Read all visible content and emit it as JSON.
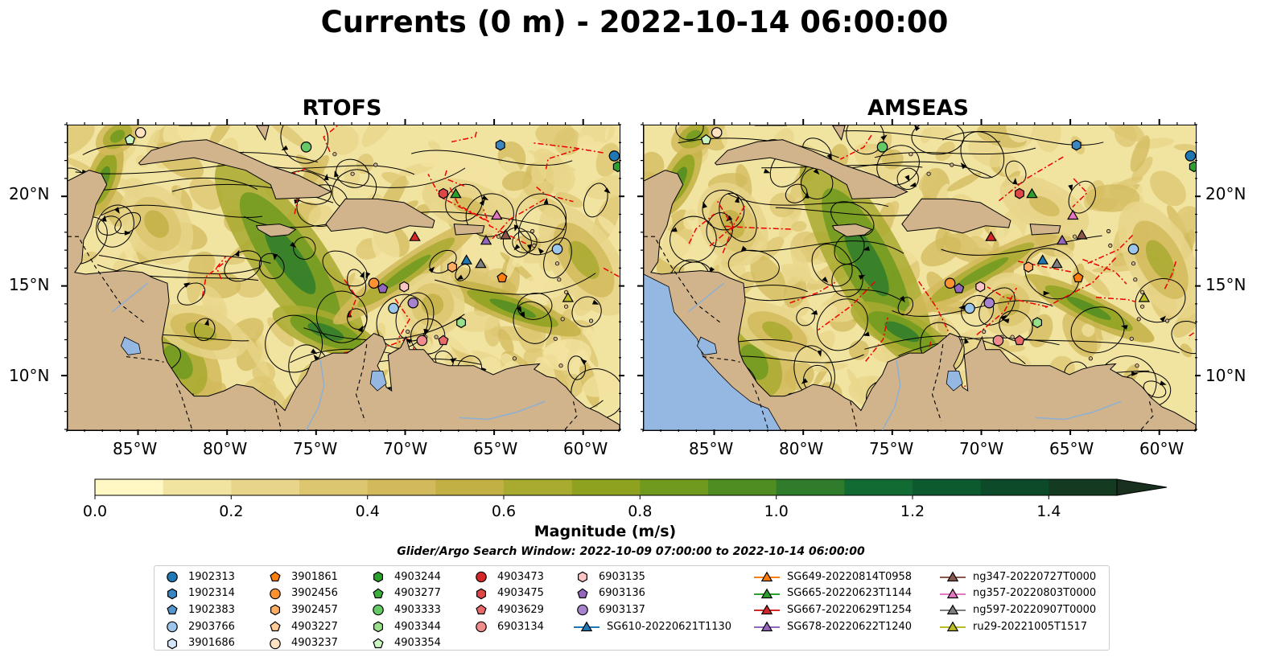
{
  "title": "Currents (0 m) - 2022-10-14 06:00:00",
  "panels": [
    {
      "title": "RTOFS",
      "ocean_left": false
    },
    {
      "title": "AMSEAS",
      "ocean_left": true
    }
  ],
  "lat_labels": [
    "20°N",
    "15°N",
    "10°N"
  ],
  "lon_labels": [
    "85°W",
    "80°W",
    "75°W",
    "70°W",
    "65°W",
    "60°W"
  ],
  "map_extent": {
    "lon_min": -89,
    "lon_max": -58,
    "lat_min": 7,
    "lat_max": 24
  },
  "colorbar": {
    "label": "Magnitude (m/s)",
    "ticks": [
      "0.0",
      "0.2",
      "0.4",
      "0.6",
      "0.8",
      "1.0",
      "1.2",
      "1.4"
    ],
    "min": 0.0,
    "max": 1.5,
    "step": 0.1,
    "extend": "max",
    "colors": [
      "#fff8c4",
      "#f1e3a0",
      "#e8d58a",
      "#dcc670",
      "#d2ba5c",
      "#c3b045",
      "#a9aa30",
      "#8ea220",
      "#6f9a1e",
      "#4f8d22",
      "#2f7c2c",
      "#136b34",
      "#0d5a2f",
      "#0c4a2a",
      "#153a22",
      "#18301d"
    ]
  },
  "search_window": "Glider/Argo Search Window: 2022-10-09 07:00:00 to 2022-10-14 06:00:00",
  "colors": {
    "land": "#d2b48c",
    "ocean": "#95b8e3",
    "lake": "#95b8e3",
    "eez": "#ee0000"
  },
  "legend": {
    "columns": [
      [
        {
          "label": "1902313",
          "marker": "circle",
          "color": "#1f77b4"
        },
        {
          "label": "1902314",
          "marker": "hexagon",
          "color": "#3b85c0"
        },
        {
          "label": "1902383",
          "marker": "pentagon",
          "color": "#5497cf"
        },
        {
          "label": "2903766",
          "marker": "circle",
          "color": "#9dc7ea"
        },
        {
          "label": "3901686",
          "marker": "hexagon",
          "color": "#d2e6f7"
        }
      ],
      [
        {
          "label": "3901861",
          "marker": "pentagon",
          "color": "#ff7f0e"
        },
        {
          "label": "3902456",
          "marker": "circle",
          "color": "#ff9230"
        },
        {
          "label": "3902457",
          "marker": "hexagon",
          "color": "#ffae63"
        },
        {
          "label": "4903227",
          "marker": "pentagon",
          "color": "#ffcb96"
        },
        {
          "label": "4903237",
          "marker": "circle",
          "color": "#ffe2c4"
        }
      ],
      [
        {
          "label": "4903244",
          "marker": "hexagon",
          "color": "#2ca02c"
        },
        {
          "label": "4903277",
          "marker": "pentagon",
          "color": "#3cae3c"
        },
        {
          "label": "4903333",
          "marker": "circle",
          "color": "#65c965"
        },
        {
          "label": "4903344",
          "marker": "hexagon",
          "color": "#98df8a"
        },
        {
          "label": "4903354",
          "marker": "pentagon",
          "color": "#ccf5c4"
        }
      ],
      [
        {
          "label": "4903473",
          "marker": "circle",
          "color": "#d62728"
        },
        {
          "label": "4903475",
          "marker": "hexagon",
          "color": "#e04848"
        },
        {
          "label": "4903629",
          "marker": "pentagon",
          "color": "#ea6a6a"
        },
        {
          "label": "6903134",
          "marker": "circle",
          "color": "#f08c8c"
        }
      ],
      [
        {
          "label": "6903135",
          "marker": "hexagon",
          "color": "#fcc5c5"
        },
        {
          "label": "6903136",
          "marker": "pentagon",
          "color": "#9467bd"
        },
        {
          "label": "6903137",
          "marker": "circle",
          "color": "#a783cd"
        },
        {
          "label": "SG610-20220621T1130",
          "marker": "triangle-line",
          "color": "#1f77b4"
        }
      ],
      [
        {
          "label": "SG649-20220814T0958",
          "marker": "triangle-line",
          "color": "#ff7f0e"
        },
        {
          "label": "SG665-20220623T1144",
          "marker": "triangle-line",
          "color": "#2ca02c"
        },
        {
          "label": "SG667-20220629T1254",
          "marker": "triangle-line",
          "color": "#d62728"
        },
        {
          "label": "SG678-20220622T1240",
          "marker": "triangle-line",
          "color": "#9467bd"
        }
      ],
      [
        {
          "label": "ng347-20220727T0000",
          "marker": "triangle-line",
          "color": "#8c564b"
        },
        {
          "label": "ng357-20220803T0000",
          "marker": "triangle-line",
          "color": "#e377c2"
        },
        {
          "label": "ng597-20220907T0000",
          "marker": "triangle-line",
          "color": "#7f7f7f"
        },
        {
          "label": "ru29-20221005T1517",
          "marker": "triangle-line",
          "color": "#bcbd22"
        }
      ]
    ]
  },
  "markers": [
    {
      "id": "4903354",
      "marker": "pentagon",
      "color": "#ccf5c4",
      "lon": -85.5,
      "lat": 23.2
    },
    {
      "id": "4903237",
      "marker": "circle",
      "color": "#ffe2c4",
      "lon": -84.9,
      "lat": 23.6
    },
    {
      "id": "4903333",
      "marker": "circle",
      "color": "#65c965",
      "lon": -75.6,
      "lat": 22.8
    },
    {
      "id": "1902314",
      "marker": "hexagon",
      "color": "#3b85c0",
      "lon": -64.7,
      "lat": 22.9
    },
    {
      "id": "1902313",
      "marker": "circle",
      "color": "#1f77b4",
      "lon": -58.3,
      "lat": 22.3
    },
    {
      "id": "4903244",
      "marker": "hexagon",
      "color": "#2ca02c",
      "lon": -58.1,
      "lat": 21.7
    },
    {
      "id": "4903475",
      "marker": "hexagon",
      "color": "#e04848",
      "lon": -67.9,
      "lat": 20.2
    },
    {
      "id": "SG665",
      "marker": "triangle",
      "color": "#2ca02c",
      "lon": -67.2,
      "lat": 20.2
    },
    {
      "id": "ng357",
      "marker": "triangle",
      "color": "#e377c2",
      "lon": -64.9,
      "lat": 19.0
    },
    {
      "id": "SG667",
      "marker": "triangle",
      "color": "#d62728",
      "lon": -69.5,
      "lat": 17.8
    },
    {
      "id": "SG678",
      "marker": "triangle",
      "color": "#9467bd",
      "lon": -65.5,
      "lat": 17.6
    },
    {
      "id": "ng347",
      "marker": "triangle",
      "color": "#8c564b",
      "lon": -64.4,
      "lat": 17.9
    },
    {
      "id": "2903766b",
      "marker": "circle",
      "color": "#9dc7ea",
      "lon": -61.5,
      "lat": 17.1
    },
    {
      "id": "SG610",
      "marker": "triangle",
      "color": "#1f77b4",
      "lon": -66.6,
      "lat": 16.5
    },
    {
      "id": "ng597",
      "marker": "triangle",
      "color": "#7f7f7f",
      "lon": -65.8,
      "lat": 16.3
    },
    {
      "id": "3902457",
      "marker": "hexagon",
      "color": "#ffae63",
      "lon": -67.4,
      "lat": 16.1
    },
    {
      "id": "3901861",
      "marker": "pentagon",
      "color": "#ff7f0e",
      "lon": -64.6,
      "lat": 15.5
    },
    {
      "id": "3902456",
      "marker": "circle",
      "color": "#ff9230",
      "lon": -71.8,
      "lat": 15.2
    },
    {
      "id": "6903136",
      "marker": "pentagon",
      "color": "#9467bd",
      "lon": -71.3,
      "lat": 14.9
    },
    {
      "id": "6903135",
      "marker": "hexagon",
      "color": "#fcc5c5",
      "lon": -70.1,
      "lat": 15.0
    },
    {
      "id": "ru29",
      "marker": "triangle",
      "color": "#bcbd22",
      "lon": -60.9,
      "lat": 14.4
    },
    {
      "id": "6903137",
      "marker": "circle",
      "color": "#a783cd",
      "lon": -69.6,
      "lat": 14.1
    },
    {
      "id": "2903766",
      "marker": "circle",
      "color": "#9dc7ea",
      "lon": -70.7,
      "lat": 13.8
    },
    {
      "id": "4903344",
      "marker": "hexagon",
      "color": "#98df8a",
      "lon": -66.9,
      "lat": 13.0
    },
    {
      "id": "6903134",
      "marker": "circle",
      "color": "#f08c8c",
      "lon": -69.1,
      "lat": 12.0
    },
    {
      "id": "4903629",
      "marker": "pentagon",
      "color": "#ea6a6a",
      "lon": -67.9,
      "lat": 12.0
    }
  ]
}
